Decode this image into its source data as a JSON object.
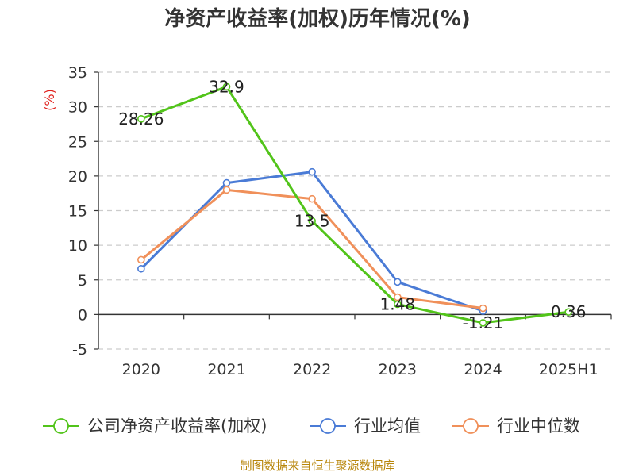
{
  "chart_data": {
    "type": "line",
    "title": "净资产收益率(加权)历年情况(%)",
    "ylabel": "(%)",
    "categories": [
      "2020",
      "2021",
      "2022",
      "2023",
      "2024",
      "2025H1"
    ],
    "ylim": [
      -5,
      35
    ],
    "yticks": [
      35,
      30,
      25,
      20,
      15,
      10,
      5,
      0,
      -5
    ],
    "grid": true,
    "legend_position": "bottom",
    "series": [
      {
        "name": "公司净资产收益率(加权)",
        "color": "#52c41a",
        "values": [
          28.26,
          32.9,
          13.5,
          1.48,
          -1.21,
          0.36
        ],
        "labels": [
          "28.26",
          "32.9",
          "13.5",
          "1.48",
          "-1.21",
          "0.36"
        ]
      },
      {
        "name": "行业均值",
        "color": "#4a7bd6",
        "values": [
          6.6,
          19.0,
          20.6,
          4.7,
          0.5,
          null
        ],
        "labels": []
      },
      {
        "name": "行业中位数",
        "color": "#f0905a",
        "values": [
          7.9,
          18.0,
          16.7,
          2.5,
          0.9,
          null
        ],
        "labels": []
      }
    ]
  },
  "source_text": "制图数据来自恒生聚源数据库"
}
